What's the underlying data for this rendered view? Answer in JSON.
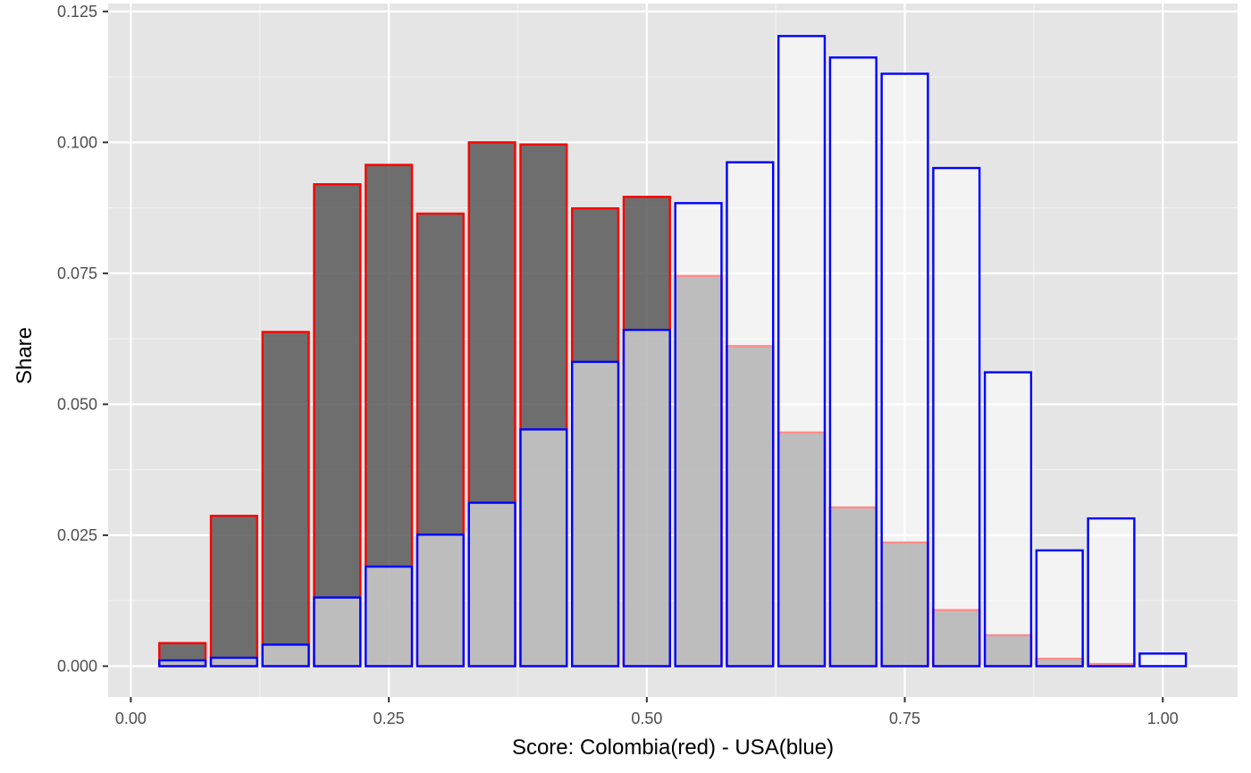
{
  "chart_data": {
    "type": "bar",
    "xlabel": "Score: Colombia(red) - USA(blue)",
    "ylabel": "Share",
    "xlim": [
      -0.022,
      1.0725
    ],
    "ylim": [
      -0.0059,
      0.1265
    ],
    "x_ticks": [
      0.0,
      0.25,
      0.5,
      0.75,
      1.0
    ],
    "x_tick_labels": [
      "0.00",
      "0.25",
      "0.50",
      "0.75",
      "1.00"
    ],
    "y_ticks": [
      0.0,
      0.025,
      0.05,
      0.075,
      0.1,
      0.125
    ],
    "y_tick_labels": [
      "0.000",
      "0.025",
      "0.050",
      "0.075",
      "0.100",
      "0.125"
    ],
    "grid": true,
    "bin_width": 0.05,
    "bin_centers": [
      0.05,
      0.1,
      0.15,
      0.2,
      0.25,
      0.3,
      0.35,
      0.4,
      0.45,
      0.5,
      0.55,
      0.6,
      0.65,
      0.7,
      0.75,
      0.8,
      0.85,
      0.9,
      0.95,
      1.0
    ],
    "series": [
      {
        "values": [
          0.0044,
          0.0287,
          0.0638,
          0.092,
          0.0957,
          0.0864,
          0.1,
          0.0996,
          0.0874,
          0.0896,
          0.0745,
          0.0611,
          0.0446,
          0.0303,
          0.0236,
          0.0107,
          0.0059,
          0.0014,
          0.0004,
          0.0
        ],
        "fill": "#595959",
        "fill_opacity": 0.85,
        "stroke": "#ff0000"
      },
      {
        "values": [
          0.0011,
          0.0016,
          0.0041,
          0.0131,
          0.019,
          0.0251,
          0.0312,
          0.0452,
          0.0581,
          0.0642,
          0.0884,
          0.0962,
          0.1203,
          0.1162,
          0.1131,
          0.0951,
          0.0561,
          0.0221,
          0.0282,
          0.0024
        ],
        "fill": "#ffffff",
        "fill_opacity": 0.55,
        "stroke": "#0000ff"
      }
    ]
  }
}
